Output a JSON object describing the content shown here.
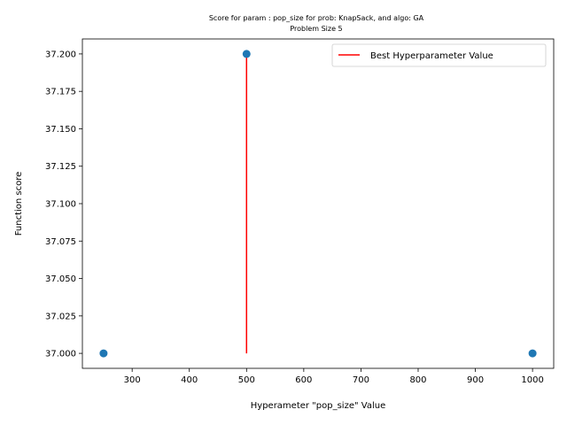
{
  "chart_data": {
    "type": "scatter",
    "title": "Score for param : pop_size for prob: KnapSack, and algo: GA",
    "subtitle": "Problem Size 5",
    "xlabel": "Hyperameter \"pop_size\" Value",
    "ylabel": "Function score",
    "xlim": [
      213,
      1037
    ],
    "ylim": [
      36.99,
      37.21
    ],
    "xticks": [
      300,
      400,
      500,
      600,
      700,
      800,
      900,
      1000
    ],
    "xtick_labels": [
      "300",
      "400",
      "500",
      "600",
      "700",
      "800",
      "900",
      "1000"
    ],
    "yticks": [
      37.0,
      37.025,
      37.05,
      37.075,
      37.1,
      37.125,
      37.15,
      37.175,
      37.2
    ],
    "ytick_labels": [
      "37.000",
      "37.025",
      "37.050",
      "37.075",
      "37.100",
      "37.125",
      "37.150",
      "37.175",
      "37.200"
    ],
    "points": {
      "x": [
        250,
        500,
        1000
      ],
      "y": [
        37.0,
        37.2,
        37.0
      ],
      "color": "#1f77b4"
    },
    "best_line": {
      "name": "Best Hyperparameter Value",
      "x": 500,
      "y_from": 37.0,
      "y_to": 37.2,
      "color": "#ff0000"
    },
    "legend_position": "top-right",
    "grid": false
  }
}
